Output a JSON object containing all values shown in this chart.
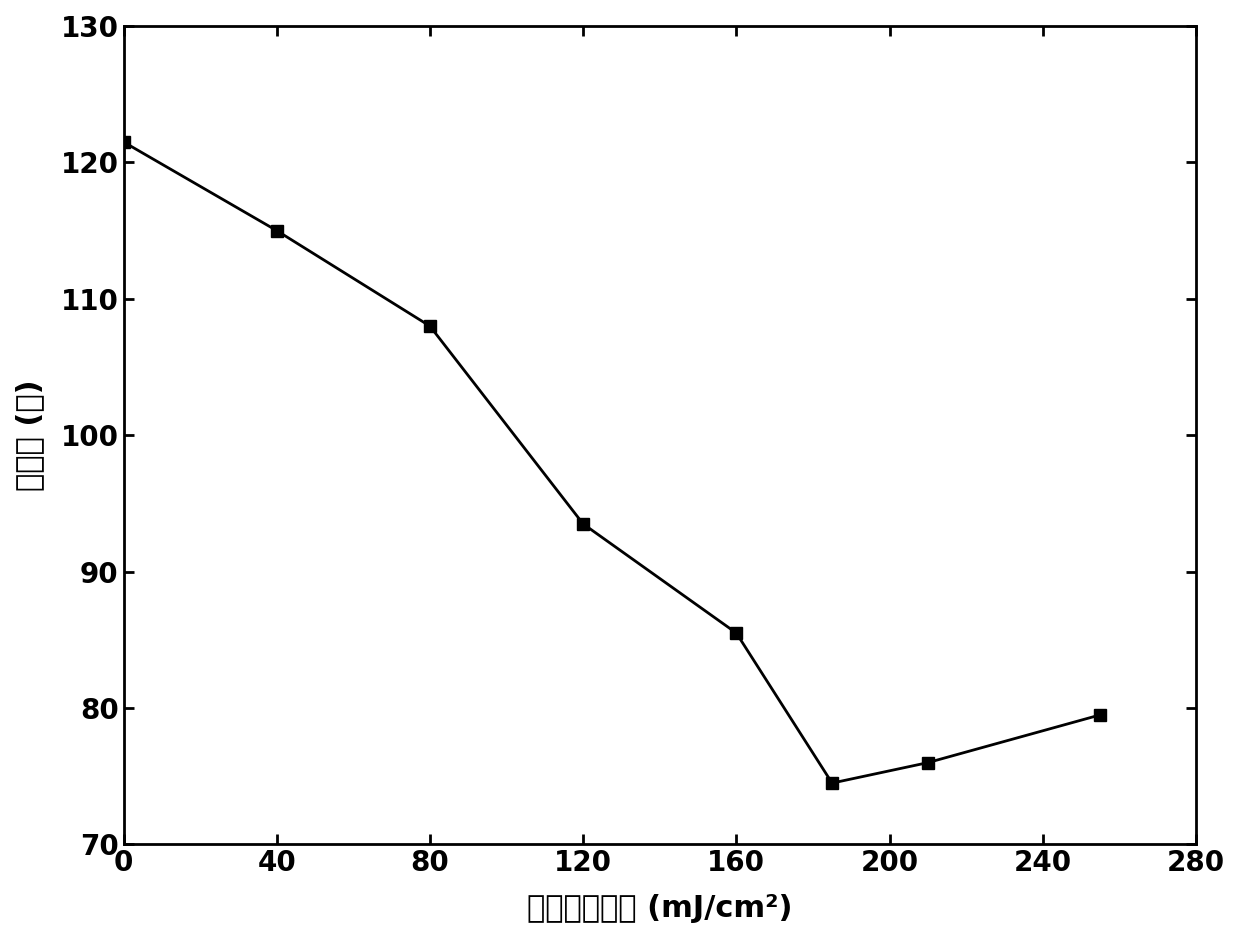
{
  "x": [
    0,
    40,
    80,
    120,
    160,
    185,
    210,
    255
  ],
  "y": [
    121.5,
    115.0,
    108.0,
    93.5,
    85.5,
    74.5,
    76.0,
    79.5
  ],
  "xlabel": "激光能量密度 (mJ/cm²)",
  "ylabel": "接触角 (度)",
  "xlim": [
    0,
    280
  ],
  "ylim": [
    70,
    130
  ],
  "xticks": [
    0,
    40,
    80,
    120,
    160,
    200,
    240,
    280
  ],
  "yticks": [
    70,
    80,
    90,
    100,
    110,
    120,
    130
  ],
  "line_color": "#000000",
  "marker": "s",
  "marker_color": "#000000",
  "marker_size": 9,
  "line_width": 2.0,
  "xlabel_fontsize": 22,
  "ylabel_fontsize": 22,
  "tick_fontsize": 20,
  "background_color": "#ffffff"
}
